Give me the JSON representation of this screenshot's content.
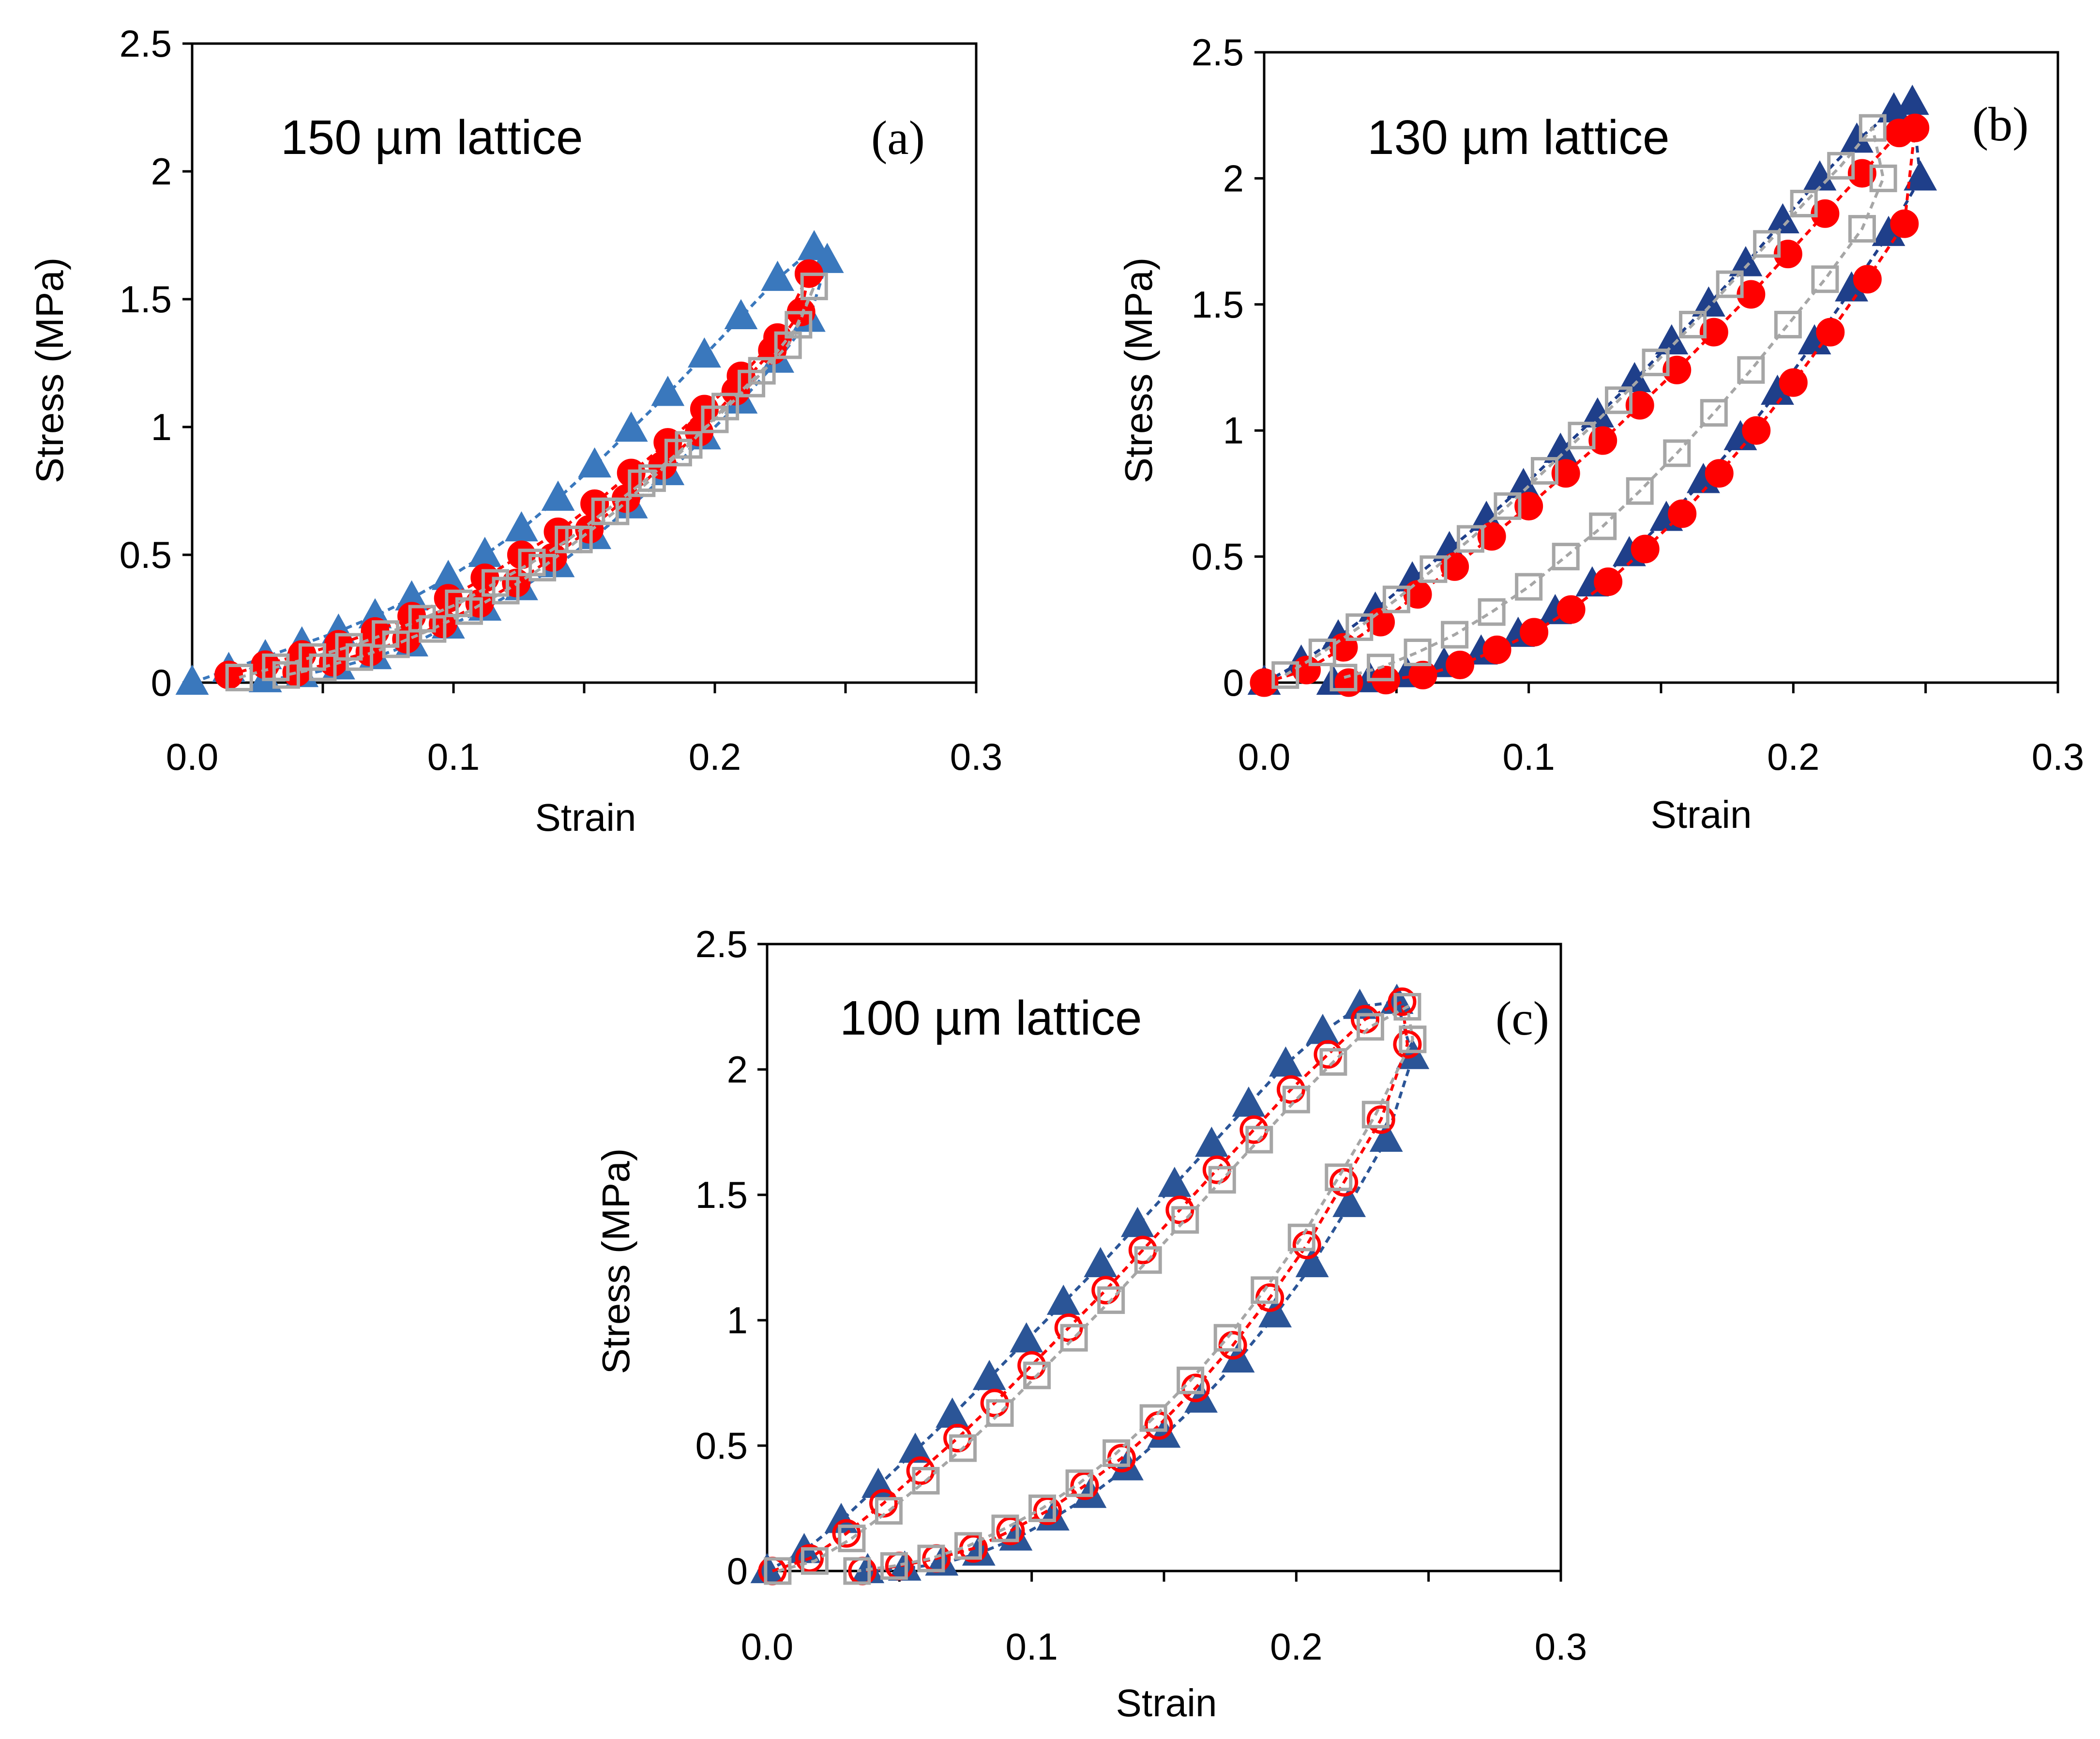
{
  "chart_data": [
    {
      "panel": "(a)",
      "type": "scatter",
      "inset_label": "150 µm lattice",
      "panel_letter": "(a)",
      "xlabel": "Strain",
      "ylabel": "Stress (MPa)",
      "xlim": [
        0,
        0.3
      ],
      "ylim": [
        0,
        2.5
      ],
      "x_ticks": [
        "0.0",
        "0.1",
        "0.2",
        "0.3"
      ],
      "y_ticks": [
        "0",
        "0.5",
        "1",
        "1.5",
        "2",
        "2.5"
      ],
      "grid": false,
      "series": [
        {
          "marker": "triangle",
          "color": "#3a78bd",
          "filled": true,
          "x": [
            0.0,
            0.014,
            0.028,
            0.042,
            0.056,
            0.07,
            0.084,
            0.098,
            0.112,
            0.126,
            0.14,
            0.154,
            0.168,
            0.182,
            0.196,
            0.21,
            0.224,
            0.238,
            0.243,
            0.236,
            0.224,
            0.21,
            0.196,
            0.182,
            0.168,
            0.154,
            0.14,
            0.126,
            0.112,
            0.098,
            0.084,
            0.07,
            0.056,
            0.042,
            0.028
          ],
          "y": [
            0.0,
            0.05,
            0.1,
            0.15,
            0.2,
            0.26,
            0.33,
            0.41,
            0.5,
            0.6,
            0.72,
            0.85,
            0.99,
            1.13,
            1.28,
            1.43,
            1.58,
            1.7,
            1.65,
            1.42,
            1.26,
            1.1,
            0.96,
            0.82,
            0.69,
            0.57,
            0.46,
            0.37,
            0.29,
            0.22,
            0.15,
            0.1,
            0.06,
            0.03,
            0.01
          ]
        },
        {
          "marker": "circle",
          "color": "#ff0000",
          "filled": true,
          "x": [
            0.014,
            0.028,
            0.042,
            0.056,
            0.07,
            0.084,
            0.098,
            0.112,
            0.126,
            0.14,
            0.154,
            0.168,
            0.182,
            0.196,
            0.21,
            0.224,
            0.236,
            0.233,
            0.222,
            0.208,
            0.194,
            0.18,
            0.166,
            0.152,
            0.138,
            0.124,
            0.11,
            0.096,
            0.082,
            0.068,
            0.054,
            0.04
          ],
          "y": [
            0.03,
            0.07,
            0.11,
            0.15,
            0.2,
            0.26,
            0.33,
            0.41,
            0.5,
            0.59,
            0.7,
            0.82,
            0.94,
            1.07,
            1.2,
            1.35,
            1.6,
            1.45,
            1.3,
            1.14,
            0.98,
            0.85,
            0.72,
            0.6,
            0.49,
            0.39,
            0.31,
            0.23,
            0.17,
            0.12,
            0.08,
            0.04
          ]
        },
        {
          "marker": "square",
          "color": "#a6a6a6",
          "filled": false,
          "x": [
            0.018,
            0.032,
            0.046,
            0.06,
            0.074,
            0.088,
            0.102,
            0.116,
            0.13,
            0.144,
            0.158,
            0.172,
            0.186,
            0.2,
            0.214,
            0.228,
            0.238,
            0.232,
            0.218,
            0.204,
            0.19,
            0.176,
            0.162,
            0.148,
            0.134,
            0.12,
            0.106,
            0.092,
            0.078,
            0.064,
            0.05,
            0.036
          ],
          "y": [
            0.02,
            0.06,
            0.1,
            0.14,
            0.19,
            0.25,
            0.31,
            0.39,
            0.47,
            0.56,
            0.67,
            0.78,
            0.9,
            1.03,
            1.17,
            1.32,
            1.55,
            1.4,
            1.22,
            1.08,
            0.93,
            0.8,
            0.67,
            0.56,
            0.45,
            0.36,
            0.28,
            0.21,
            0.15,
            0.1,
            0.06,
            0.03
          ]
        }
      ]
    },
    {
      "panel": "(b)",
      "type": "scatter",
      "inset_label": "130 µm lattice",
      "panel_letter": "(b)",
      "xlabel": "Strain",
      "ylabel": "Stress (MPa)",
      "xlim": [
        0,
        0.3
      ],
      "ylim": [
        0,
        2.5
      ],
      "x_ticks": [
        "0.0",
        "0.1",
        "0.2",
        "0.3"
      ],
      "y_ticks": [
        "0",
        "0.5",
        "1",
        "1.5",
        "2",
        "2.5"
      ],
      "grid": false,
      "series": [
        {
          "marker": "triangle",
          "color": "#1f3f8a",
          "filled": true,
          "x": [
            0.0,
            0.014,
            0.028,
            0.042,
            0.056,
            0.07,
            0.084,
            0.098,
            0.112,
            0.126,
            0.14,
            0.154,
            0.168,
            0.182,
            0.196,
            0.21,
            0.224,
            0.238,
            0.245,
            0.248,
            0.236,
            0.222,
            0.208,
            0.194,
            0.18,
            0.166,
            0.152,
            0.138,
            0.124,
            0.11,
            0.096,
            0.082,
            0.068,
            0.054,
            0.04,
            0.026
          ],
          "y": [
            0.0,
            0.08,
            0.18,
            0.29,
            0.41,
            0.53,
            0.65,
            0.78,
            0.92,
            1.06,
            1.2,
            1.35,
            1.5,
            1.66,
            1.83,
            2.0,
            2.15,
            2.27,
            2.3,
            2.0,
            1.78,
            1.56,
            1.35,
            1.15,
            0.97,
            0.8,
            0.65,
            0.51,
            0.39,
            0.28,
            0.19,
            0.12,
            0.07,
            0.03,
            0.01,
            0.0
          ]
        },
        {
          "marker": "circle",
          "color": "#ff0000",
          "filled": true,
          "x": [
            0.0,
            0.016,
            0.03,
            0.044,
            0.058,
            0.072,
            0.086,
            0.1,
            0.114,
            0.128,
            0.142,
            0.156,
            0.17,
            0.184,
            0.198,
            0.212,
            0.226,
            0.24,
            0.246,
            0.242,
            0.228,
            0.214,
            0.2,
            0.186,
            0.172,
            0.158,
            0.144,
            0.13,
            0.116,
            0.102,
            0.088,
            0.074,
            0.06,
            0.046,
            0.032
          ],
          "y": [
            0.0,
            0.05,
            0.14,
            0.24,
            0.35,
            0.46,
            0.58,
            0.7,
            0.83,
            0.96,
            1.1,
            1.24,
            1.39,
            1.54,
            1.7,
            1.86,
            2.02,
            2.18,
            2.2,
            1.82,
            1.6,
            1.39,
            1.19,
            1.0,
            0.83,
            0.67,
            0.53,
            0.4,
            0.29,
            0.2,
            0.13,
            0.07,
            0.03,
            0.01,
            0.0
          ]
        },
        {
          "marker": "square",
          "color": "#a6a6a6",
          "filled": false,
          "x": [
            0.008,
            0.022,
            0.036,
            0.05,
            0.064,
            0.078,
            0.092,
            0.106,
            0.12,
            0.134,
            0.148,
            0.162,
            0.176,
            0.19,
            0.204,
            0.218,
            0.23,
            0.234,
            0.226,
            0.212,
            0.198,
            0.184,
            0.17,
            0.156,
            0.142,
            0.128,
            0.114,
            0.1,
            0.086,
            0.072,
            0.058,
            0.044,
            0.03
          ],
          "y": [
            0.03,
            0.12,
            0.22,
            0.33,
            0.45,
            0.57,
            0.7,
            0.84,
            0.98,
            1.12,
            1.27,
            1.42,
            1.58,
            1.74,
            1.9,
            2.05,
            2.2,
            2.0,
            1.8,
            1.6,
            1.42,
            1.24,
            1.07,
            0.91,
            0.76,
            0.62,
            0.5,
            0.38,
            0.28,
            0.19,
            0.12,
            0.06,
            0.02
          ]
        }
      ]
    },
    {
      "panel": "(c)",
      "type": "scatter",
      "inset_label": "100 µm lattice",
      "panel_letter": "(c)",
      "xlabel": "Strain",
      "ylabel": "Stress (MPa)",
      "xlim": [
        0,
        0.3
      ],
      "ylim": [
        0,
        2.5
      ],
      "x_ticks": [
        "0.0",
        "0.1",
        "0.2",
        "0.3"
      ],
      "y_ticks": [
        "0",
        "0.5",
        "1",
        "1.5",
        "2",
        "2.5"
      ],
      "grid": false,
      "series": [
        {
          "marker": "triangle",
          "color": "#2b5597",
          "filled": true,
          "x": [
            0.0,
            0.014,
            0.028,
            0.042,
            0.056,
            0.07,
            0.084,
            0.098,
            0.112,
            0.126,
            0.14,
            0.154,
            0.168,
            0.182,
            0.196,
            0.21,
            0.224,
            0.238,
            0.244,
            0.234,
            0.22,
            0.206,
            0.192,
            0.178,
            0.164,
            0.15,
            0.136,
            0.122,
            0.108,
            0.094,
            0.08,
            0.066,
            0.052,
            0.038
          ],
          "y": [
            0.0,
            0.08,
            0.2,
            0.34,
            0.48,
            0.62,
            0.77,
            0.92,
            1.07,
            1.22,
            1.38,
            1.54,
            1.7,
            1.86,
            2.02,
            2.15,
            2.25,
            2.27,
            2.05,
            1.72,
            1.46,
            1.22,
            1.02,
            0.84,
            0.68,
            0.54,
            0.41,
            0.3,
            0.21,
            0.13,
            0.07,
            0.03,
            0.01,
            0.0
          ]
        },
        {
          "marker": "circle",
          "color": "#ff0000",
          "filled": false,
          "x": [
            0.002,
            0.016,
            0.03,
            0.044,
            0.058,
            0.072,
            0.086,
            0.1,
            0.114,
            0.128,
            0.142,
            0.156,
            0.17,
            0.184,
            0.198,
            0.212,
            0.226,
            0.24,
            0.242,
            0.232,
            0.218,
            0.204,
            0.19,
            0.176,
            0.162,
            0.148,
            0.134,
            0.12,
            0.106,
            0.092,
            0.078,
            0.064,
            0.05,
            0.036
          ],
          "y": [
            0.0,
            0.05,
            0.15,
            0.27,
            0.4,
            0.53,
            0.67,
            0.82,
            0.97,
            1.12,
            1.28,
            1.44,
            1.6,
            1.76,
            1.92,
            2.06,
            2.2,
            2.27,
            2.1,
            1.8,
            1.55,
            1.3,
            1.09,
            0.9,
            0.73,
            0.58,
            0.45,
            0.34,
            0.24,
            0.16,
            0.09,
            0.05,
            0.02,
            0.0
          ]
        },
        {
          "marker": "square",
          "color": "#a6a6a6",
          "filled": false,
          "x": [
            0.004,
            0.018,
            0.032,
            0.046,
            0.06,
            0.074,
            0.088,
            0.102,
            0.116,
            0.13,
            0.144,
            0.158,
            0.172,
            0.186,
            0.2,
            0.214,
            0.228,
            0.242,
            0.244,
            0.23,
            0.216,
            0.202,
            0.188,
            0.174,
            0.16,
            0.146,
            0.132,
            0.118,
            0.104,
            0.09,
            0.076,
            0.062,
            0.048,
            0.034
          ],
          "y": [
            0.0,
            0.04,
            0.13,
            0.24,
            0.36,
            0.49,
            0.63,
            0.78,
            0.93,
            1.08,
            1.24,
            1.4,
            1.56,
            1.72,
            1.88,
            2.03,
            2.17,
            2.25,
            2.12,
            1.82,
            1.57,
            1.33,
            1.12,
            0.93,
            0.76,
            0.61,
            0.47,
            0.35,
            0.25,
            0.17,
            0.1,
            0.05,
            0.02,
            0.0
          ]
        }
      ]
    }
  ]
}
